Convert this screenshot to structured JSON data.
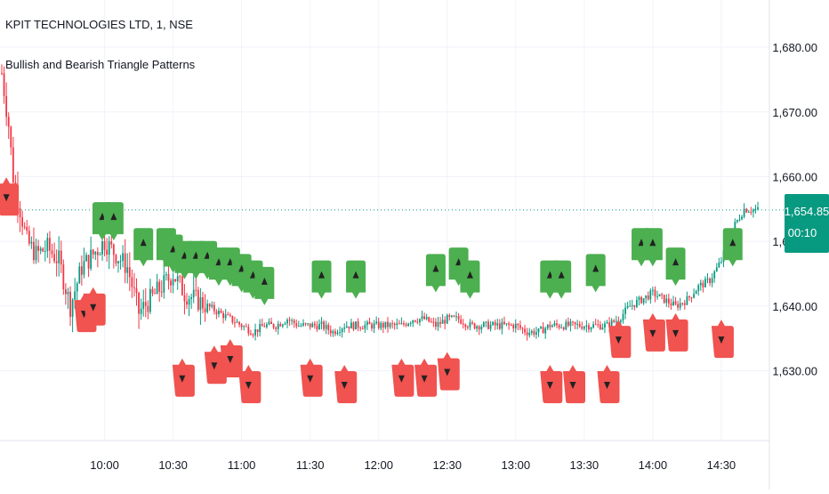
{
  "header": {
    "symbol_title": "KPIT TECHNOLOGIES LTD, 1, NSE",
    "indicator_title": "Bullish and Bearish Triangle Patterns"
  },
  "price_badge": {
    "price": "1,654.85",
    "countdown": "00:10",
    "color": "#089981"
  },
  "colors": {
    "bull_label": "#4caf50",
    "bear_label": "#f05350",
    "up_candle": "#089981",
    "down_candle": "#f23645",
    "grid": "#f0f3fa",
    "text": "#131722"
  },
  "chart_data": {
    "type": "candlestick",
    "title": "KPIT TECHNOLOGIES LTD, 1, NSE",
    "subtitle": "Bullish and Bearish Triangle Patterns",
    "x_ticks": [
      "10:00",
      "10:30",
      "11:00",
      "11:30",
      "12:00",
      "12:30",
      "13:00",
      "13:30",
      "14:00",
      "14:30"
    ],
    "y_ticks": [
      "1,630.00",
      "1,640.00",
      "1,650.00",
      "1,660.00",
      "1,670.00",
      "1,680.00"
    ],
    "y_tick_values": [
      1630,
      1640,
      1650,
      1660,
      1670,
      1680
    ],
    "ylim": [
      1621,
      1684
    ],
    "x_range_minutes": [
      "09:15",
      "14:46"
    ],
    "last_price": 1654.85,
    "grid": true,
    "price_path": [
      [
        "09:15",
        1676
      ],
      [
        "09:18",
        1668
      ],
      [
        "09:20",
        1660
      ],
      [
        "09:23",
        1655
      ],
      [
        "09:26",
        1650
      ],
      [
        "09:30",
        1648
      ],
      [
        "09:35",
        1649
      ],
      [
        "09:40",
        1647
      ],
      [
        "09:45",
        1640
      ],
      [
        "09:50",
        1646
      ],
      [
        "09:55",
        1648
      ],
      [
        "10:00",
        1650
      ],
      [
        "10:05",
        1648
      ],
      [
        "10:10",
        1646
      ],
      [
        "10:15",
        1639
      ],
      [
        "10:20",
        1641
      ],
      [
        "10:25",
        1643
      ],
      [
        "10:30",
        1645
      ],
      [
        "10:35",
        1642
      ],
      [
        "10:40",
        1641
      ],
      [
        "10:45",
        1640
      ],
      [
        "10:50",
        1639
      ],
      [
        "10:55",
        1638
      ],
      [
        "11:00",
        1637
      ],
      [
        "11:05",
        1636
      ],
      [
        "11:10",
        1637
      ],
      [
        "11:15",
        1637
      ],
      [
        "11:20",
        1638
      ],
      [
        "11:25",
        1637
      ],
      [
        "11:30",
        1637
      ],
      [
        "11:35",
        1637
      ],
      [
        "11:40",
        1636
      ],
      [
        "11:45",
        1637
      ],
      [
        "11:50",
        1637
      ],
      [
        "11:55",
        1637
      ],
      [
        "12:00",
        1637
      ],
      [
        "12:05",
        1637
      ],
      [
        "12:10",
        1637
      ],
      [
        "12:15",
        1638
      ],
      [
        "12:20",
        1638
      ],
      [
        "12:25",
        1637
      ],
      [
        "12:30",
        1638
      ],
      [
        "12:35",
        1638
      ],
      [
        "12:40",
        1637
      ],
      [
        "12:45",
        1637
      ],
      [
        "12:50",
        1637
      ],
      [
        "12:55",
        1637
      ],
      [
        "13:00",
        1637
      ],
      [
        "13:05",
        1636
      ],
      [
        "13:10",
        1636
      ],
      [
        "13:15",
        1637
      ],
      [
        "13:20",
        1637
      ],
      [
        "13:25",
        1637
      ],
      [
        "13:30",
        1637
      ],
      [
        "13:35",
        1637
      ],
      [
        "13:40",
        1637
      ],
      [
        "13:45",
        1638
      ],
      [
        "13:50",
        1640
      ],
      [
        "13:55",
        1641
      ],
      [
        "14:00",
        1642
      ],
      [
        "14:05",
        1641
      ],
      [
        "14:10",
        1640
      ],
      [
        "14:15",
        1641
      ],
      [
        "14:20",
        1643
      ],
      [
        "14:25",
        1644
      ],
      [
        "14:30",
        1647
      ],
      [
        "14:35",
        1652
      ],
      [
        "14:40",
        1655
      ],
      [
        "14:46",
        1654.85
      ]
    ],
    "bullish_signals": [
      [
        "09:59",
        1650
      ],
      [
        "10:04",
        1650
      ],
      [
        "10:17",
        1646
      ],
      [
        "10:27",
        1646
      ],
      [
        "10:30",
        1645
      ],
      [
        "10:35",
        1644
      ],
      [
        "10:40",
        1644
      ],
      [
        "10:45",
        1644
      ],
      [
        "10:50",
        1643
      ],
      [
        "10:55",
        1643
      ],
      [
        "11:00",
        1642
      ],
      [
        "11:05",
        1641
      ],
      [
        "11:10",
        1640
      ],
      [
        "11:35",
        1641
      ],
      [
        "11:50",
        1641
      ],
      [
        "12:25",
        1642
      ],
      [
        "12:35",
        1643
      ],
      [
        "12:40",
        1641
      ],
      [
        "13:15",
        1641
      ],
      [
        "13:20",
        1641
      ],
      [
        "13:35",
        1642
      ],
      [
        "13:55",
        1646
      ],
      [
        "14:00",
        1646
      ],
      [
        "14:10",
        1643
      ],
      [
        "14:35",
        1646
      ]
    ],
    "bearish_signals": [
      [
        "09:17",
        1661
      ],
      [
        "09:51",
        1643
      ],
      [
        "09:55",
        1644
      ],
      [
        "10:34",
        1633
      ],
      [
        "10:48",
        1635
      ],
      [
        "10:55",
        1636
      ],
      [
        "11:03",
        1632
      ],
      [
        "11:30",
        1633
      ],
      [
        "11:45",
        1632
      ],
      [
        "12:10",
        1633
      ],
      [
        "12:20",
        1633
      ],
      [
        "12:30",
        1634
      ],
      [
        "13:15",
        1632
      ],
      [
        "13:25",
        1632
      ],
      [
        "13:40",
        1632
      ],
      [
        "13:45",
        1639
      ],
      [
        "14:00",
        1640
      ],
      [
        "14:10",
        1640
      ],
      [
        "14:30",
        1639
      ]
    ]
  }
}
